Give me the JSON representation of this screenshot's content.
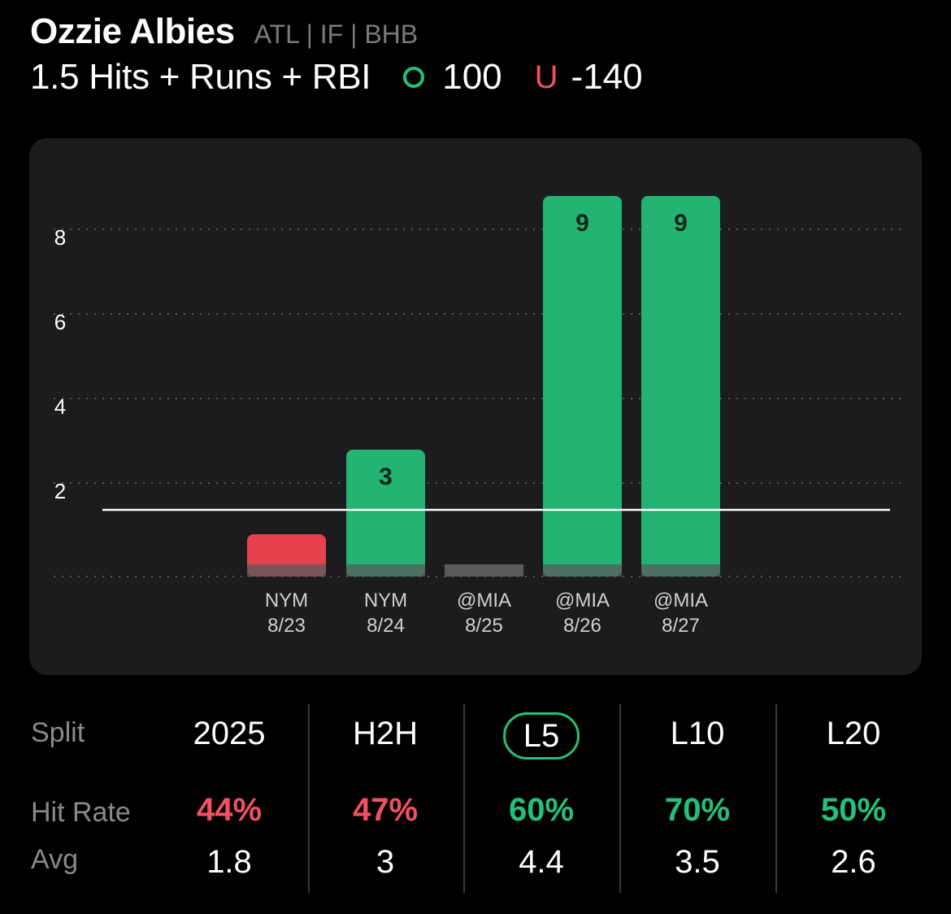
{
  "header": {
    "player_name": "Ozzie Albies",
    "player_meta": "ATL | IF | BHB",
    "prop": "1.5 Hits + Runs + RBI",
    "over_label": "O",
    "over_odds": "100",
    "under_label": "U",
    "under_odds": "-140"
  },
  "colors": {
    "over": "#24c07a",
    "under": "#f25060",
    "bar_green": "#23b373",
    "bar_red": "#e8414e",
    "bar_base": "#5a5a5c",
    "card_bg": "#1c1c1e"
  },
  "chart_data": {
    "type": "bar",
    "categories": [
      {
        "opponent": "NYM",
        "date": "8/23"
      },
      {
        "opponent": "NYM",
        "date": "8/24"
      },
      {
        "opponent": "@MIA",
        "date": "8/25"
      },
      {
        "opponent": "@MIA",
        "date": "8/26"
      },
      {
        "opponent": "@MIA",
        "date": "8/27"
      }
    ],
    "values": [
      1,
      3,
      0,
      9,
      9
    ],
    "value_labels": [
      "",
      "3",
      "",
      "9",
      "9"
    ],
    "result": [
      "under",
      "over",
      "under",
      "over",
      "over"
    ],
    "line": 1.5,
    "y_ticks": [
      2,
      4,
      6,
      8
    ],
    "ylim": [
      0,
      9.5
    ],
    "grid": true
  },
  "splits": {
    "row_labels": {
      "split": "Split",
      "hit_rate": "Hit Rate",
      "avg": "Avg"
    },
    "columns": [
      {
        "label": "2025",
        "hit_rate": "44%",
        "hit_status": "under",
        "avg": "1.8",
        "active": false
      },
      {
        "label": "H2H",
        "hit_rate": "47%",
        "hit_status": "under",
        "avg": "3",
        "active": false
      },
      {
        "label": "L5",
        "hit_rate": "60%",
        "hit_status": "over",
        "avg": "4.4",
        "active": true
      },
      {
        "label": "L10",
        "hit_rate": "70%",
        "hit_status": "over",
        "avg": "3.5",
        "active": false
      },
      {
        "label": "L20",
        "hit_rate": "50%",
        "hit_status": "over",
        "avg": "2.6",
        "active": false
      }
    ]
  }
}
